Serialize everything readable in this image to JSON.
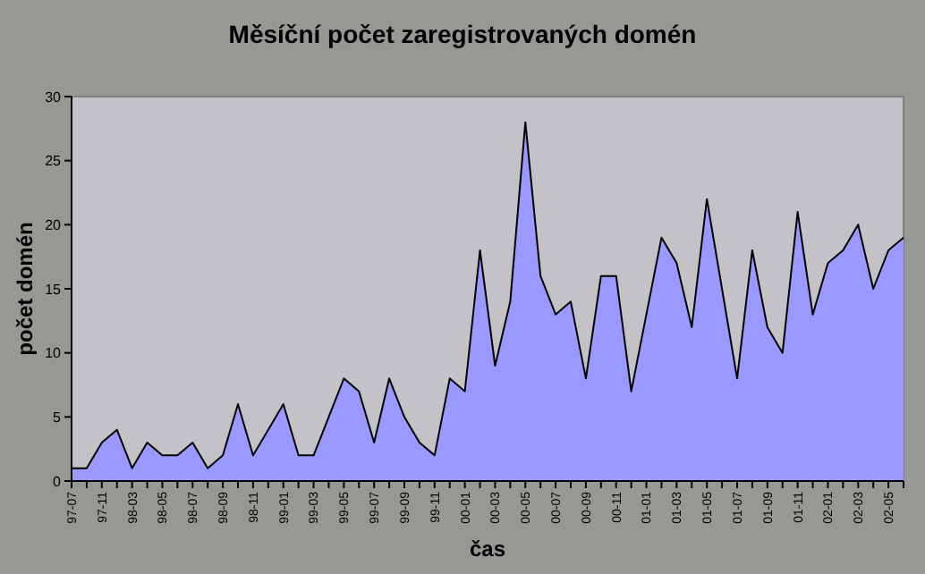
{
  "chart_data": {
    "type": "area",
    "title": "Měsíční počet zaregistrovaných domén",
    "xlabel": "čas",
    "ylabel": "počet domén",
    "categories": [
      "97-07",
      null,
      "97-11",
      null,
      "98-03",
      null,
      "98-05",
      null,
      "98-07",
      null,
      "98-09",
      null,
      "98-11",
      null,
      "99-01",
      null,
      "99-03",
      null,
      "99-05",
      null,
      "99-07",
      null,
      "99-09",
      null,
      "99-11",
      null,
      "00-01",
      null,
      "00-03",
      null,
      "00-05",
      null,
      "00-07",
      null,
      "00-09",
      null,
      "00-11",
      null,
      "01-01",
      null,
      "01-03",
      null,
      "01-05",
      null,
      "01-07",
      null,
      "01-09",
      null,
      "01-11",
      null,
      "02-01",
      null,
      "02-03",
      null,
      "02-05",
      null
    ],
    "series": [
      {
        "color": "#9999ff",
        "values": [
          1,
          1,
          3,
          4,
          1,
          3,
          2,
          2,
          3,
          1,
          2,
          6,
          2,
          4,
          6,
          2,
          2,
          5,
          8,
          7,
          3,
          8,
          5,
          3,
          2,
          8,
          7,
          18,
          9,
          14,
          28,
          16,
          13,
          14,
          8,
          16,
          16,
          7,
          13,
          19,
          17,
          12,
          22,
          15,
          8,
          18,
          12,
          10,
          21,
          13,
          17,
          18,
          20,
          15,
          18,
          19
        ]
      }
    ],
    "ylim": [
      0,
      30
    ],
    "yticks": [
      0,
      5,
      10,
      15,
      20,
      25,
      30
    ],
    "grid": false
  }
}
